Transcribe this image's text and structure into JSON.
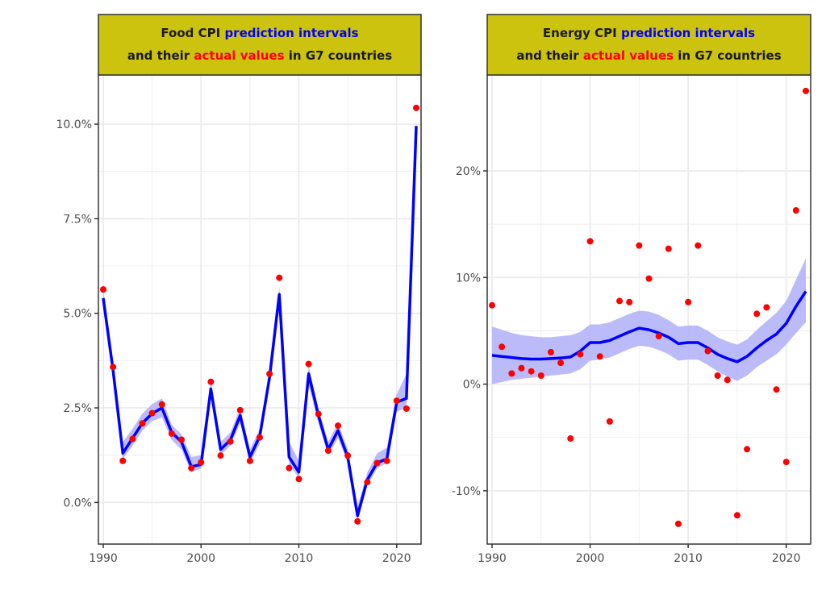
{
  "colors": {
    "strip": "#CCC30F",
    "prediction": "#0000FF",
    "band": "#B4B4F8",
    "actual": "#FF0000",
    "grid": "#EBEBEB",
    "frame": "#333333"
  },
  "chart_data": [
    {
      "type": "line",
      "title_parts": [
        {
          "text": "Food CPI",
          "color": "#1a1a1a"
        },
        {
          "text": "prediction intervals",
          "color": "#0000FF"
        }
      ],
      "title_parts_line2": [
        {
          "text": "and their",
          "color": "#1a1a1a"
        },
        {
          "text": "actual values",
          "color": "#FF0000"
        },
        {
          "text": "in G7 countries",
          "color": "#1a1a1a"
        }
      ],
      "xlim": [
        1990,
        2022
      ],
      "ylim": [
        -1.1,
        11.3
      ],
      "x_ticks": [
        1990,
        2000,
        2010,
        2020
      ],
      "x_tick_labels": [
        "1990",
        "2000",
        "2010",
        "2020"
      ],
      "y_ticks": [
        0,
        2.5,
        5,
        7.5,
        10
      ],
      "y_tick_labels": [
        "0.0%",
        "2.5%",
        "5.0%",
        "7.5%",
        "10.0%"
      ],
      "grid": true,
      "x": [
        1990,
        1991,
        1992,
        1993,
        1994,
        1995,
        1996,
        1997,
        1998,
        1999,
        2000,
        2001,
        2002,
        2003,
        2004,
        2005,
        2006,
        2007,
        2008,
        2009,
        2010,
        2011,
        2012,
        2013,
        2014,
        2015,
        2016,
        2017,
        2018,
        2019,
        2020,
        2021,
        2022
      ],
      "prediction": [
        5.4,
        3.5,
        1.3,
        1.7,
        2.1,
        2.35,
        2.5,
        1.85,
        1.6,
        0.95,
        1.0,
        3.0,
        1.4,
        1.65,
        2.3,
        1.2,
        1.75,
        3.3,
        5.5,
        1.2,
        0.8,
        3.4,
        2.3,
        1.4,
        1.9,
        1.2,
        -0.35,
        0.6,
        1.05,
        1.15,
        2.65,
        2.75,
        9.95
      ],
      "lower": [
        5.2,
        3.3,
        1.15,
        1.5,
        1.9,
        2.15,
        2.25,
        1.65,
        1.4,
        0.8,
        0.9,
        2.75,
        1.25,
        1.5,
        2.1,
        1.05,
        1.55,
        3.1,
        5.2,
        1.0,
        0.65,
        3.1,
        2.1,
        1.25,
        1.7,
        1.05,
        -0.5,
        0.45,
        0.9,
        1.05,
        2.4,
        2.5,
        9.8
      ],
      "upper": [
        5.6,
        3.7,
        1.6,
        1.95,
        2.35,
        2.6,
        2.75,
        2.05,
        1.8,
        1.2,
        1.25,
        3.25,
        1.6,
        1.85,
        2.5,
        1.4,
        1.95,
        3.5,
        5.7,
        1.6,
        1.1,
        3.6,
        2.5,
        1.6,
        2.1,
        1.4,
        -0.1,
        0.8,
        1.3,
        1.45,
        2.85,
        3.4,
        10.1
      ],
      "actual": [
        5.63,
        3.58,
        1.1,
        1.68,
        2.09,
        2.36,
        2.59,
        1.82,
        1.66,
        0.91,
        1.06,
        3.19,
        1.24,
        1.61,
        2.44,
        1.1,
        1.72,
        3.4,
        5.94,
        0.91,
        0.62,
        3.66,
        2.34,
        1.37,
        2.03,
        1.24,
        -0.5,
        0.54,
        1.04,
        1.1,
        2.69,
        2.48,
        10.43
      ]
    },
    {
      "type": "line",
      "title_parts": [
        {
          "text": "Energy CPI",
          "color": "#1a1a1a"
        },
        {
          "text": "prediction intervals",
          "color": "#0000FF"
        }
      ],
      "title_parts_line2": [
        {
          "text": "and their",
          "color": "#1a1a1a"
        },
        {
          "text": "actual values",
          "color": "#FF0000"
        },
        {
          "text": "in G7 countries",
          "color": "#1a1a1a"
        }
      ],
      "xlim": [
        1990,
        2022
      ],
      "ylim": [
        -15,
        29
      ],
      "x_ticks": [
        1990,
        2000,
        2010,
        2020
      ],
      "x_tick_labels": [
        "1990",
        "2000",
        "2010",
        "2020"
      ],
      "y_ticks": [
        -10,
        0,
        10,
        20
      ],
      "y_tick_labels": [
        "-10%",
        "0%",
        "10%",
        "20%"
      ],
      "grid": true,
      "x": [
        1990,
        1991,
        1992,
        1993,
        1994,
        1995,
        1996,
        1997,
        1998,
        1999,
        2000,
        2001,
        2002,
        2003,
        2004,
        2005,
        2006,
        2007,
        2008,
        2009,
        2010,
        2011,
        2012,
        2013,
        2014,
        2015,
        2016,
        2017,
        2018,
        2019,
        2020,
        2021,
        2022
      ],
      "prediction": [
        2.7,
        2.6,
        2.5,
        2.4,
        2.35,
        2.35,
        2.4,
        2.45,
        2.55,
        3.1,
        3.9,
        3.9,
        4.1,
        4.5,
        4.9,
        5.25,
        5.1,
        4.8,
        4.4,
        3.8,
        3.9,
        3.9,
        3.4,
        2.8,
        2.4,
        2.1,
        2.6,
        3.4,
        4.1,
        4.7,
        5.7,
        7.3,
        8.7
      ],
      "lower": [
        0.0,
        0.2,
        0.4,
        0.5,
        0.6,
        0.7,
        0.8,
        0.9,
        1.0,
        1.4,
        2.2,
        2.3,
        2.5,
        2.9,
        3.3,
        3.6,
        3.5,
        3.2,
        2.8,
        2.2,
        2.3,
        2.3,
        1.8,
        1.2,
        0.7,
        0.3,
        0.8,
        1.6,
        2.2,
        2.8,
        3.7,
        4.8,
        5.8
      ],
      "upper": [
        5.4,
        5.1,
        4.8,
        4.6,
        4.5,
        4.4,
        4.4,
        4.5,
        4.6,
        4.9,
        5.6,
        5.6,
        5.8,
        6.2,
        6.6,
        6.9,
        6.8,
        6.5,
        6.0,
        5.4,
        5.5,
        5.5,
        5.0,
        4.4,
        4.0,
        3.7,
        4.2,
        5.1,
        5.9,
        6.7,
        7.8,
        9.8,
        11.8
      ],
      "actual": [
        7.4,
        3.5,
        1.0,
        1.5,
        1.2,
        0.8,
        3.0,
        2.0,
        -5.1,
        2.8,
        13.4,
        2.6,
        -3.5,
        7.8,
        7.7,
        13.0,
        9.9,
        4.5,
        12.7,
        -13.1,
        7.7,
        13.0,
        3.1,
        0.8,
        0.4,
        -12.3,
        -6.1,
        6.6,
        7.2,
        -0.5,
        -7.3,
        16.3,
        27.5
      ]
    }
  ]
}
